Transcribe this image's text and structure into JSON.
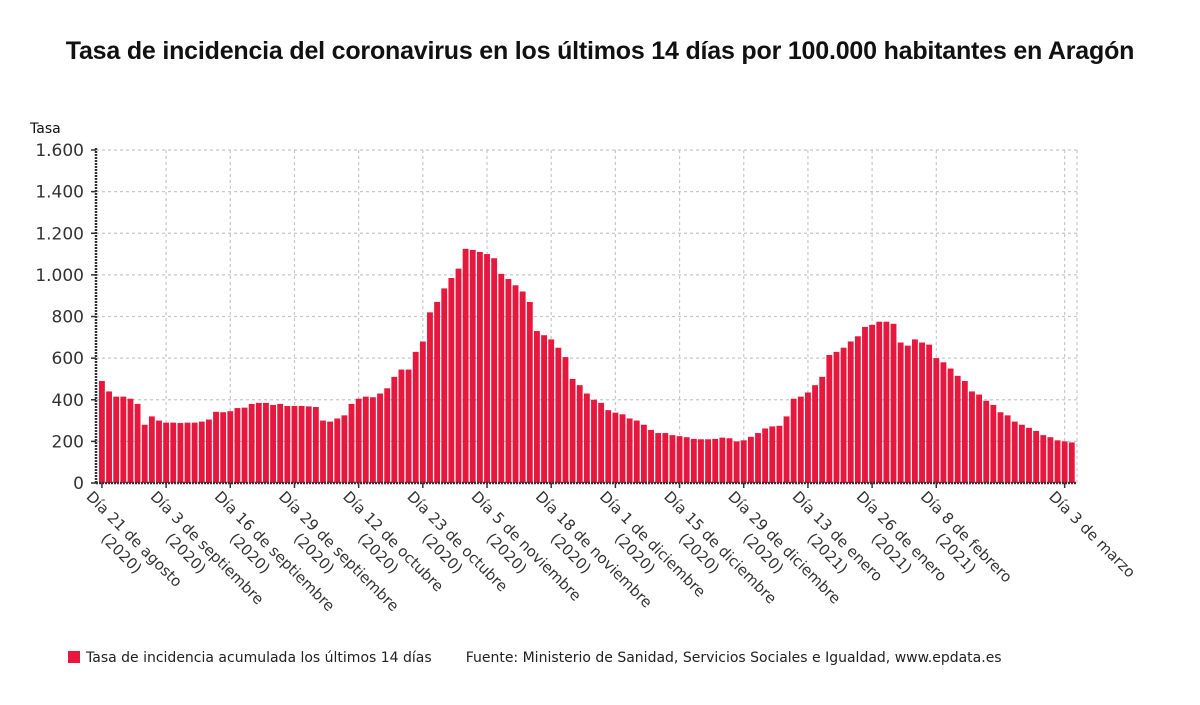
{
  "chart_data": {
    "type": "bar",
    "title": "Tasa de incidencia del coronavirus en los últimos 14 días por 100.000 habitantes en Aragón",
    "xlabel": "",
    "ylabel": "Tasa",
    "ylim": [
      0,
      1600
    ],
    "yticks": [
      0,
      200,
      400,
      600,
      800,
      1000,
      1200,
      1400,
      1600
    ],
    "ytick_labels": [
      "0",
      "200",
      "400",
      "600",
      "800",
      "1.000",
      "1.200",
      "1.400",
      "1.600"
    ],
    "grid": true,
    "legend_position": "bottom-left",
    "color": "#E8173E",
    "series": [
      {
        "name": "Tasa de incidencia acumulada los últimos 14 días",
        "values": [
          490,
          440,
          415,
          415,
          405,
          380,
          280,
          320,
          300,
          290,
          290,
          288,
          290,
          290,
          295,
          305,
          342,
          340,
          345,
          360,
          362,
          380,
          385,
          385,
          375,
          380,
          370,
          370,
          370,
          368,
          365,
          300,
          295,
          310,
          325,
          380,
          405,
          415,
          412,
          430,
          455,
          510,
          545,
          545,
          630,
          680,
          820,
          870,
          935,
          985,
          1030,
          1125,
          1120,
          1110,
          1100,
          1080,
          1005,
          980,
          950,
          920,
          870,
          730,
          710,
          690,
          650,
          605,
          500,
          470,
          430,
          400,
          385,
          350,
          338,
          330,
          310,
          300,
          280,
          255,
          240,
          240,
          230,
          225,
          220,
          212,
          210,
          210,
          212,
          218,
          215,
          200,
          205,
          222,
          240,
          262,
          272,
          275,
          320,
          405,
          415,
          435,
          470,
          510,
          615,
          630,
          650,
          680,
          705,
          750,
          760,
          775,
          775,
          765,
          675,
          660,
          690,
          675,
          665,
          600,
          580,
          550,
          515,
          490,
          440,
          425,
          395,
          375,
          340,
          325,
          295,
          280,
          265,
          250,
          230,
          220,
          205,
          200,
          195
        ]
      }
    ],
    "tick_labels": [
      {
        "index": 0,
        "lines": [
          "Día 21 de agosto",
          "(2020)"
        ]
      },
      {
        "index": 9,
        "lines": [
          "Día 3 de septiembre",
          "(2020)"
        ]
      },
      {
        "index": 18,
        "lines": [
          "Día 16 de septiembre",
          "(2020)"
        ]
      },
      {
        "index": 27,
        "lines": [
          "Día 29 de septiembre",
          "(2020)"
        ]
      },
      {
        "index": 36,
        "lines": [
          "Día 12 de octubre",
          "(2020)"
        ]
      },
      {
        "index": 45,
        "lines": [
          "Día 23 de octubre",
          "(2020)"
        ]
      },
      {
        "index": 54,
        "lines": [
          "Día 5 de noviembre",
          "(2020)"
        ]
      },
      {
        "index": 63,
        "lines": [
          "Día 18 de noviembre",
          "(2020)"
        ]
      },
      {
        "index": 72,
        "lines": [
          "Día 1 de diciembre",
          "(2020)"
        ]
      },
      {
        "index": 81,
        "lines": [
          "Día 15 de diciembre",
          "(2020)"
        ]
      },
      {
        "index": 90,
        "lines": [
          "Día 29 de diciembre",
          "(2020)"
        ]
      },
      {
        "index": 99,
        "lines": [
          "Día 13 de enero",
          "(2021)"
        ]
      },
      {
        "index": 108,
        "lines": [
          "Día 26 de enero",
          "(2021)"
        ]
      },
      {
        "index": 117,
        "lines": [
          "Día 8 de febrero",
          "(2021)"
        ]
      },
      {
        "index": 135,
        "lines": [
          "Día 3 de marzo"
        ]
      }
    ]
  },
  "footer": {
    "legend_label": "Tasa de incidencia acumulada los últimos 14 días",
    "source": "Fuente: Ministerio de Sanidad, Servicios Sociales e Igualdad, www.epdata.es"
  }
}
